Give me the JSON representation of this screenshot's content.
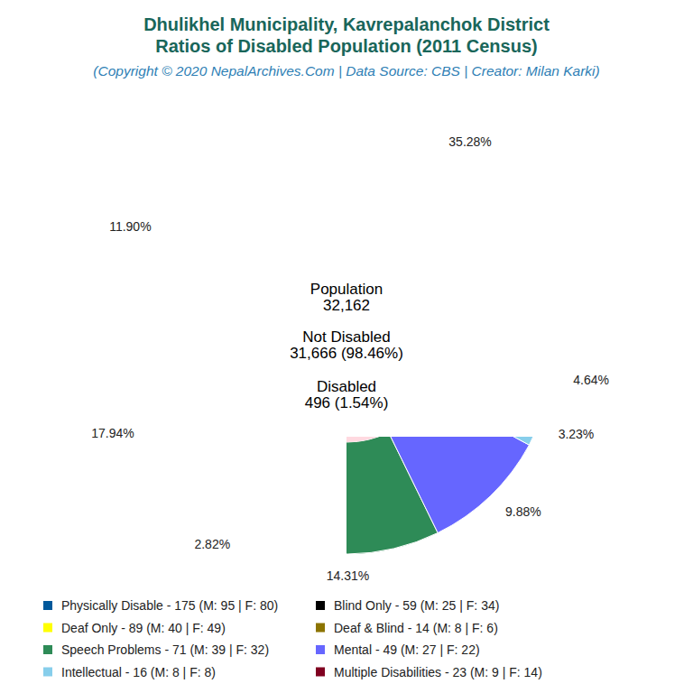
{
  "chart_data": {
    "type": "pie",
    "title": [
      "Dhulikhel Municipality, Kavrepalanchok District",
      "Ratios of Disabled Population (2011 Census)"
    ],
    "subtitle": "(Copyright © 2020 NepalArchives.Com | Data Source: CBS | Creator: Milan Karki)",
    "annotations": [
      "Population",
      "32,162",
      "Not Disabled",
      "31,666 (98.46%)",
      "Disabled",
      "496 (1.54%)"
    ],
    "categories": [
      "Physically Disable - 175 (M: 95 | F: 80)",
      "Blind Only - 59 (M: 25 | F: 34)",
      "Deaf Only - 89 (M: 40 | F: 49)",
      "Deaf & Blind - 14 (M: 8 | F: 6)",
      "Speech Problems - 71 (M: 39 | F: 32)",
      "Mental - 49 (M: 27 | F: 22)",
      "Intellectual - 16 (M: 8 | F: 8)",
      "Multiple Disabilities - 23 (M: 9 | F: 14)"
    ],
    "values": [
      35.28,
      11.9,
      17.94,
      2.82,
      14.31,
      9.88,
      3.23,
      4.64
    ],
    "value_labels": [
      "35.28%",
      "11.90%",
      "17.94%",
      "2.82%",
      "14.31%",
      "9.88%",
      "3.23%",
      "4.64%"
    ],
    "colors": [
      "#00589b",
      "#000000",
      "#ffff00",
      "#8c7400",
      "#2e8b57",
      "#6666ff",
      "#87ceeb",
      "#800020"
    ],
    "data_labels": true,
    "legend": "bottom"
  }
}
